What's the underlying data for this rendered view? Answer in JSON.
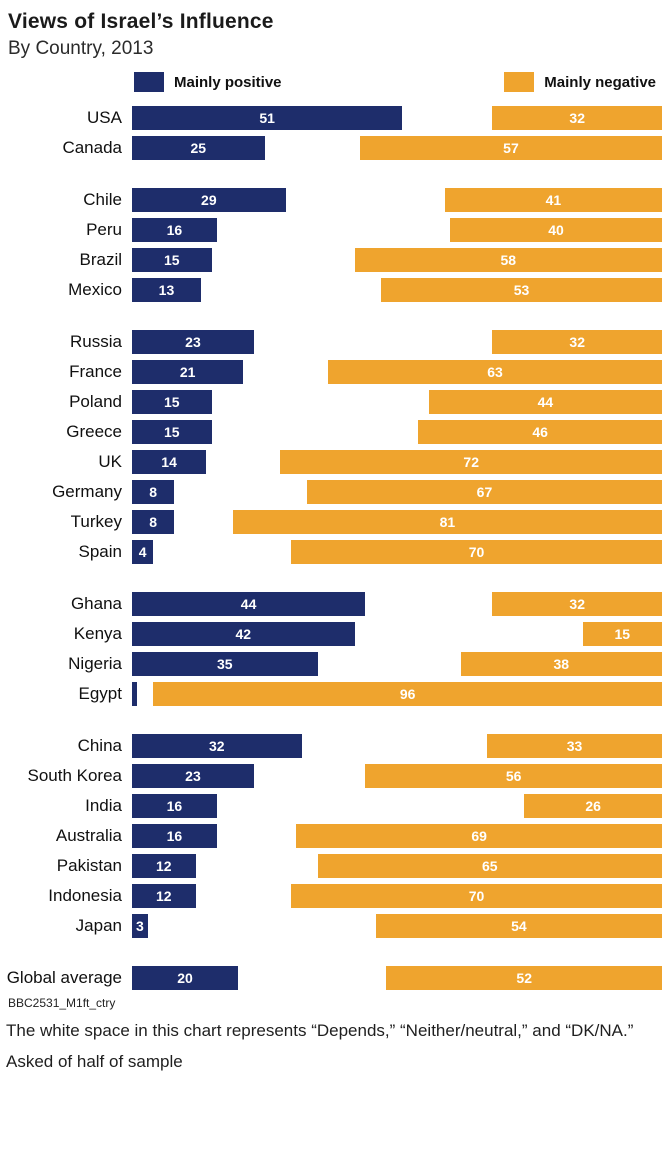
{
  "title": "Views of Israel’s Influence",
  "subtitle": "By Country, 2013",
  "legend": {
    "positive": "Mainly positive",
    "negative": "Mainly negative"
  },
  "colors": {
    "positive": "#1e2d6b",
    "negative": "#efa42e"
  },
  "footer": {
    "source_code": "BBC2531_M1ft_ctry",
    "note1": "The white space in this chart represents “Depends,” “Neither/neutral,” and “DK/NA.”",
    "note2": "Asked of half of sample"
  },
  "chart_data": {
    "type": "bar",
    "variant": "horizontal-diverging",
    "title": "Views of Israel’s Influence",
    "subtitle": "By Country, 2013",
    "unit": "%",
    "xlim": [
      0,
      100
    ],
    "legend_position": "top",
    "grid": false,
    "group_sizes": [
      2,
      4,
      8,
      4,
      7,
      1
    ],
    "categories": [
      "USA",
      "Canada",
      "Chile",
      "Peru",
      "Brazil",
      "Mexico",
      "Russia",
      "France",
      "Poland",
      "Greece",
      "UK",
      "Germany",
      "Turkey",
      "Spain",
      "Ghana",
      "Kenya",
      "Nigeria",
      "Egypt",
      "China",
      "South Korea",
      "India",
      "Australia",
      "Pakistan",
      "Indonesia",
      "Japan",
      "Global average"
    ],
    "series": [
      {
        "name": "Mainly positive",
        "color": "#1e2d6b",
        "values": [
          51,
          25,
          29,
          16,
          15,
          13,
          23,
          21,
          15,
          15,
          14,
          8,
          8,
          4,
          44,
          42,
          35,
          1,
          32,
          23,
          16,
          16,
          12,
          12,
          3,
          20
        ]
      },
      {
        "name": "Mainly negative",
        "color": "#efa42e",
        "values": [
          32,
          57,
          41,
          40,
          58,
          53,
          32,
          63,
          44,
          46,
          72,
          67,
          81,
          70,
          32,
          15,
          38,
          96,
          33,
          56,
          26,
          69,
          65,
          70,
          54,
          52
        ]
      }
    ]
  }
}
